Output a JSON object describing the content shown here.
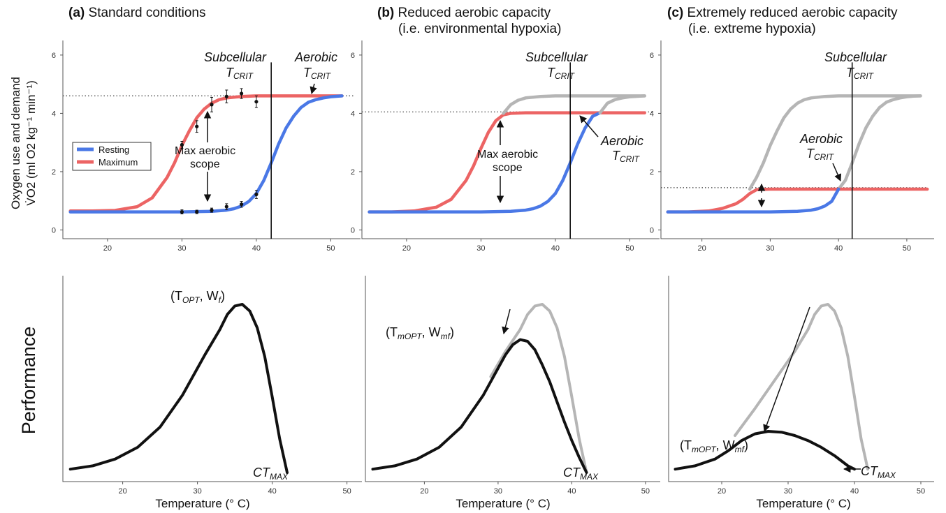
{
  "figure": {
    "panel_a_title_letter": "(a)",
    "panel_a_title": "Standard conditions",
    "panel_b_title_letter": "(b)",
    "panel_b_title_line1": "Reduced aerobic capacity",
    "panel_b_title_line2": "(i.e. environmental hypoxia)",
    "panel_c_title_letter": "(c)",
    "panel_c_title_line1": "Extremely reduced aerobic capacity",
    "panel_c_title_line2": "(i.e. extreme hypoxia)",
    "ylabel_top_line1": "Oxygen use and demand",
    "ylabel_top_line2": "V̇O2 (ml O2 kg⁻¹ min⁻¹)",
    "ylabel_bottom": "Performance",
    "xlabel": "Temperature (° C)"
  },
  "annotations": {
    "subcellular": "Subcellular",
    "aerobic": "Aerobic",
    "tcrit": "T",
    "tcrit_sub": "CRIT",
    "max_aerobic_line1": "Max aerobic",
    "max_aerobic_line2": "scope",
    "topt_label": "(T",
    "topt_sub": "OPT",
    "topt_w": ", W",
    "topt_wsub": "f",
    "topt_close": ")",
    "tmopt_label": "(T",
    "tmopt_sub": "mOPT",
    "tmopt_w": ", W",
    "tmopt_wsub": "mf",
    "tmopt_close": ")",
    "ctmax": "CT",
    "ctmax_sub": "MAX"
  },
  "legend": {
    "resting": "Resting",
    "maximum": "Maximum"
  },
  "colors": {
    "resting": "#4a78e6",
    "maximum": "#ec6464",
    "gray": "#b5b5b5",
    "black": "#111111"
  },
  "chart_data": [
    {
      "type": "line",
      "panel": "a-top",
      "xlim": [
        14,
        54
      ],
      "ylim": [
        -0.3,
        6.5
      ],
      "xticks": [
        20,
        30,
        40,
        50
      ],
      "yticks": [
        0,
        2,
        4,
        6
      ],
      "dotted_hline": 4.6,
      "vline": 42,
      "series": [
        {
          "name": "Maximum",
          "color": "#ec6464",
          "x": [
            15,
            18,
            21,
            24,
            26,
            28,
            29,
            30,
            31,
            32,
            33,
            34,
            35,
            36,
            38,
            40,
            44,
            48,
            51.5
          ],
          "y": [
            0.65,
            0.65,
            0.67,
            0.8,
            1.1,
            1.8,
            2.3,
            2.9,
            3.4,
            3.85,
            4.15,
            4.35,
            4.47,
            4.53,
            4.58,
            4.6,
            4.6,
            4.6,
            4.6
          ]
        },
        {
          "name": "Resting",
          "color": "#4a78e6",
          "x": [
            15,
            20,
            25,
            30,
            34,
            36,
            37,
            38,
            39,
            40,
            41,
            42,
            43,
            44,
            45,
            46,
            47,
            48,
            49,
            50,
            51.5
          ],
          "y": [
            0.62,
            0.62,
            0.62,
            0.62,
            0.64,
            0.68,
            0.73,
            0.82,
            0.98,
            1.25,
            1.7,
            2.3,
            2.95,
            3.5,
            3.9,
            4.2,
            4.38,
            4.47,
            4.53,
            4.57,
            4.6
          ]
        }
      ],
      "points": {
        "x": [
          30,
          32,
          34,
          36,
          38,
          40
        ],
        "max_y": [
          2.92,
          3.55,
          4.3,
          4.58,
          4.68,
          4.4
        ],
        "max_err": [
          0.12,
          0.2,
          0.25,
          0.22,
          0.17,
          0.2
        ],
        "rest_y": [
          0.62,
          0.62,
          0.68,
          0.8,
          0.88,
          1.22
        ],
        "rest_err": [
          0.07,
          0.06,
          0.07,
          0.1,
          0.1,
          0.14
        ]
      }
    },
    {
      "type": "line",
      "panel": "b-top",
      "xlim": [
        14,
        54
      ],
      "ylim": [
        -0.3,
        6.5
      ],
      "xticks": [
        20,
        30,
        40,
        50
      ],
      "yticks": [
        0,
        2,
        4,
        6
      ],
      "dotted_hline": 4.05,
      "vline": 42,
      "series": [
        {
          "name": "Maximum",
          "color": "#ec6464",
          "x": [
            15,
            18,
            21,
            24,
            26,
            28,
            29,
            30,
            31,
            32,
            33,
            34,
            36,
            40,
            44,
            48,
            52
          ],
          "y": [
            0.62,
            0.62,
            0.65,
            0.78,
            1.05,
            1.7,
            2.2,
            2.8,
            3.35,
            3.75,
            3.95,
            4.0,
            4.02,
            4.02,
            4.02,
            4.02,
            4.02
          ]
        },
        {
          "name": "Resting",
          "color": "#4a78e6",
          "x": [
            15,
            20,
            25,
            30,
            34,
            36,
            37,
            38,
            39,
            40,
            41,
            42,
            43,
            44,
            45,
            46
          ],
          "y": [
            0.62,
            0.62,
            0.62,
            0.62,
            0.64,
            0.68,
            0.73,
            0.82,
            0.98,
            1.25,
            1.7,
            2.3,
            2.95,
            3.5,
            3.9,
            4.02
          ]
        },
        {
          "name": "",
          "color": "#b5b5b5",
          "x": [
            33,
            34,
            35,
            36,
            38,
            40,
            44,
            48,
            52
          ],
          "y": [
            4.0,
            4.3,
            4.45,
            4.53,
            4.58,
            4.6,
            4.6,
            4.6,
            4.6
          ]
        },
        {
          "name": "",
          "color": "#b5b5b5",
          "x": [
            46,
            47,
            48,
            49,
            50,
            52
          ],
          "y": [
            4.02,
            4.35,
            4.47,
            4.53,
            4.57,
            4.6
          ]
        }
      ]
    },
    {
      "type": "line",
      "panel": "c-top",
      "xlim": [
        14,
        54
      ],
      "ylim": [
        -0.3,
        6.5
      ],
      "xticks": [
        20,
        30,
        40,
        50
      ],
      "yticks": [
        0,
        2,
        4,
        6
      ],
      "dotted_hline": 1.45,
      "vline": 42,
      "series": [
        {
          "name": "",
          "color": "#b5b5b5",
          "x": [
            27,
            28,
            29,
            30,
            31,
            32,
            33,
            34,
            35,
            36,
            38,
            40,
            44,
            48,
            52
          ],
          "y": [
            1.4,
            1.8,
            2.3,
            2.9,
            3.4,
            3.85,
            4.15,
            4.35,
            4.47,
            4.53,
            4.58,
            4.6,
            4.6,
            4.6,
            4.6
          ]
        },
        {
          "name": "",
          "color": "#b5b5b5",
          "x": [
            40,
            41,
            42,
            43,
            44,
            45,
            46,
            47,
            48,
            49,
            50,
            51,
            52
          ],
          "y": [
            1.4,
            1.7,
            2.3,
            2.95,
            3.5,
            3.9,
            4.2,
            4.38,
            4.47,
            4.53,
            4.57,
            4.59,
            4.6
          ]
        },
        {
          "name": "Maximum",
          "color": "#ec6464",
          "x": [
            15,
            18,
            21,
            23,
            25,
            26,
            27,
            28,
            30,
            35,
            40,
            45,
            50,
            53
          ],
          "y": [
            0.62,
            0.62,
            0.65,
            0.74,
            0.9,
            1.05,
            1.25,
            1.38,
            1.4,
            1.4,
            1.4,
            1.4,
            1.4,
            1.4
          ]
        },
        {
          "name": "Resting",
          "color": "#4a78e6",
          "x": [
            15,
            20,
            25,
            30,
            34,
            36,
            37,
            38,
            39,
            40
          ],
          "y": [
            0.62,
            0.62,
            0.62,
            0.62,
            0.64,
            0.68,
            0.73,
            0.82,
            0.98,
            1.4
          ]
        }
      ]
    },
    {
      "type": "line",
      "panel": "a-bottom",
      "xlim": [
        12,
        52
      ],
      "xticks": [
        20,
        30,
        40,
        50
      ],
      "series": [
        {
          "name": "",
          "color": "#111111",
          "x": [
            13,
            16,
            19,
            22,
            25,
            28,
            31,
            33,
            34,
            35,
            36,
            37,
            38,
            39,
            40,
            41,
            42
          ],
          "y": [
            0.02,
            0.04,
            0.08,
            0.15,
            0.27,
            0.46,
            0.7,
            0.85,
            0.94,
            0.99,
            1.0,
            0.96,
            0.86,
            0.69,
            0.45,
            0.2,
            0.0
          ]
        }
      ]
    },
    {
      "type": "line",
      "panel": "b-bottom",
      "xlim": [
        12,
        52
      ],
      "xticks": [
        20,
        30,
        40,
        50
      ],
      "series": [
        {
          "name": "",
          "color": "#b5b5b5",
          "x": [
            29,
            31,
            33,
            34,
            35,
            36,
            37,
            38,
            39,
            40,
            41,
            42
          ],
          "y": [
            0.57,
            0.72,
            0.85,
            0.94,
            0.99,
            1.0,
            0.96,
            0.86,
            0.69,
            0.45,
            0.2,
            0.0
          ]
        },
        {
          "name": "",
          "color": "#111111",
          "x": [
            13,
            16,
            19,
            22,
            25,
            28,
            30,
            31,
            32,
            33,
            34,
            35,
            36,
            37,
            38,
            39,
            40,
            41,
            42
          ],
          "y": [
            0.02,
            0.04,
            0.08,
            0.15,
            0.27,
            0.46,
            0.62,
            0.7,
            0.76,
            0.79,
            0.78,
            0.73,
            0.64,
            0.54,
            0.42,
            0.3,
            0.19,
            0.09,
            0.0
          ]
        }
      ]
    },
    {
      "type": "line",
      "panel": "c-bottom",
      "xlim": [
        12,
        52
      ],
      "xticks": [
        20,
        30,
        40,
        50
      ],
      "series": [
        {
          "name": "",
          "color": "#b5b5b5",
          "x": [
            22,
            25,
            28,
            31,
            33,
            34,
            35,
            36,
            37,
            38,
            39,
            40,
            41,
            42
          ],
          "y": [
            0.22,
            0.38,
            0.55,
            0.72,
            0.85,
            0.94,
            0.99,
            1.0,
            0.96,
            0.86,
            0.69,
            0.45,
            0.2,
            0.02
          ]
        },
        {
          "name": "",
          "color": "#111111",
          "x": [
            13,
            16,
            19,
            21,
            23,
            25,
            27,
            29,
            31,
            33,
            35,
            37,
            39,
            40
          ],
          "y": [
            0.02,
            0.04,
            0.08,
            0.13,
            0.19,
            0.23,
            0.245,
            0.24,
            0.22,
            0.19,
            0.15,
            0.1,
            0.04,
            0.02
          ]
        }
      ]
    }
  ]
}
